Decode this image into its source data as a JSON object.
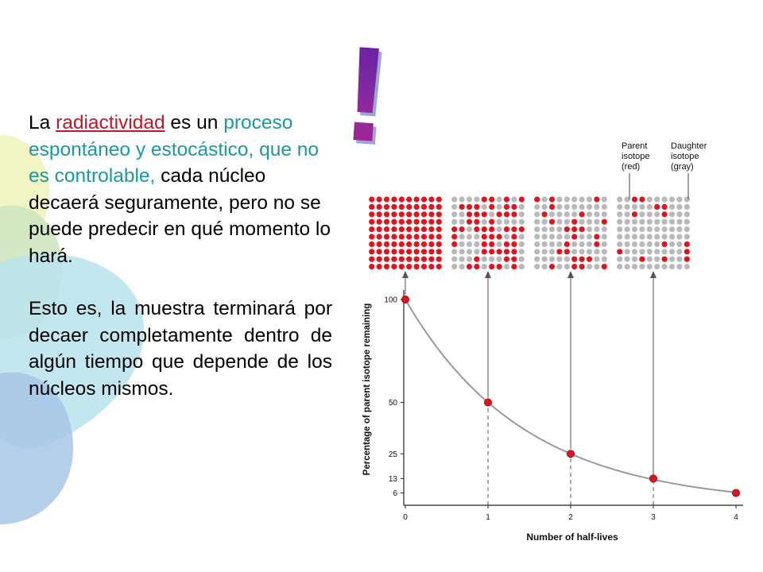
{
  "slide": {
    "para1": {
      "lead": "La ",
      "term": "radiactividad",
      "after_term": " es un ",
      "teal": "proceso espontáneo y estocástico, que no es controlable,",
      "rest": " cada núcleo decaerá seguramente, pero no se puede predecir en qué momento lo hará."
    },
    "para2": "Esto es, la muestra terminará por decaer completamente dentro de algún tiempo que depende de los núcleos  mismos.",
    "exclamation": "!"
  },
  "colors": {
    "red_term": "#c0182a",
    "teal_text": "#1a9aa0",
    "parent_red": "#e0141e",
    "daughter_gray": "#b9b9b9",
    "curve": "#9a9a9a"
  },
  "legend": {
    "parent": [
      "Parent",
      "isotope",
      "(red)"
    ],
    "daughter": [
      "Daughter",
      "isotope",
      "(gray)"
    ]
  },
  "chart_data": {
    "type": "line",
    "xlabel": "Number of half-lives",
    "ylabel": "Percentage of parent isotope remaining",
    "x": [
      0,
      1,
      2,
      3,
      4
    ],
    "values": [
      100,
      50,
      25,
      13,
      6
    ],
    "x_ticks": [
      "0",
      "1",
      "2",
      "3",
      "4"
    ],
    "y_ticks": [
      "100",
      "50",
      "25",
      "13",
      "6"
    ],
    "ylim": [
      0,
      100
    ],
    "xlim": [
      0,
      4
    ],
    "grid": false,
    "dot_grids": {
      "size": "10 x 10",
      "parent_remaining": [
        100,
        50,
        25,
        13
      ]
    }
  }
}
